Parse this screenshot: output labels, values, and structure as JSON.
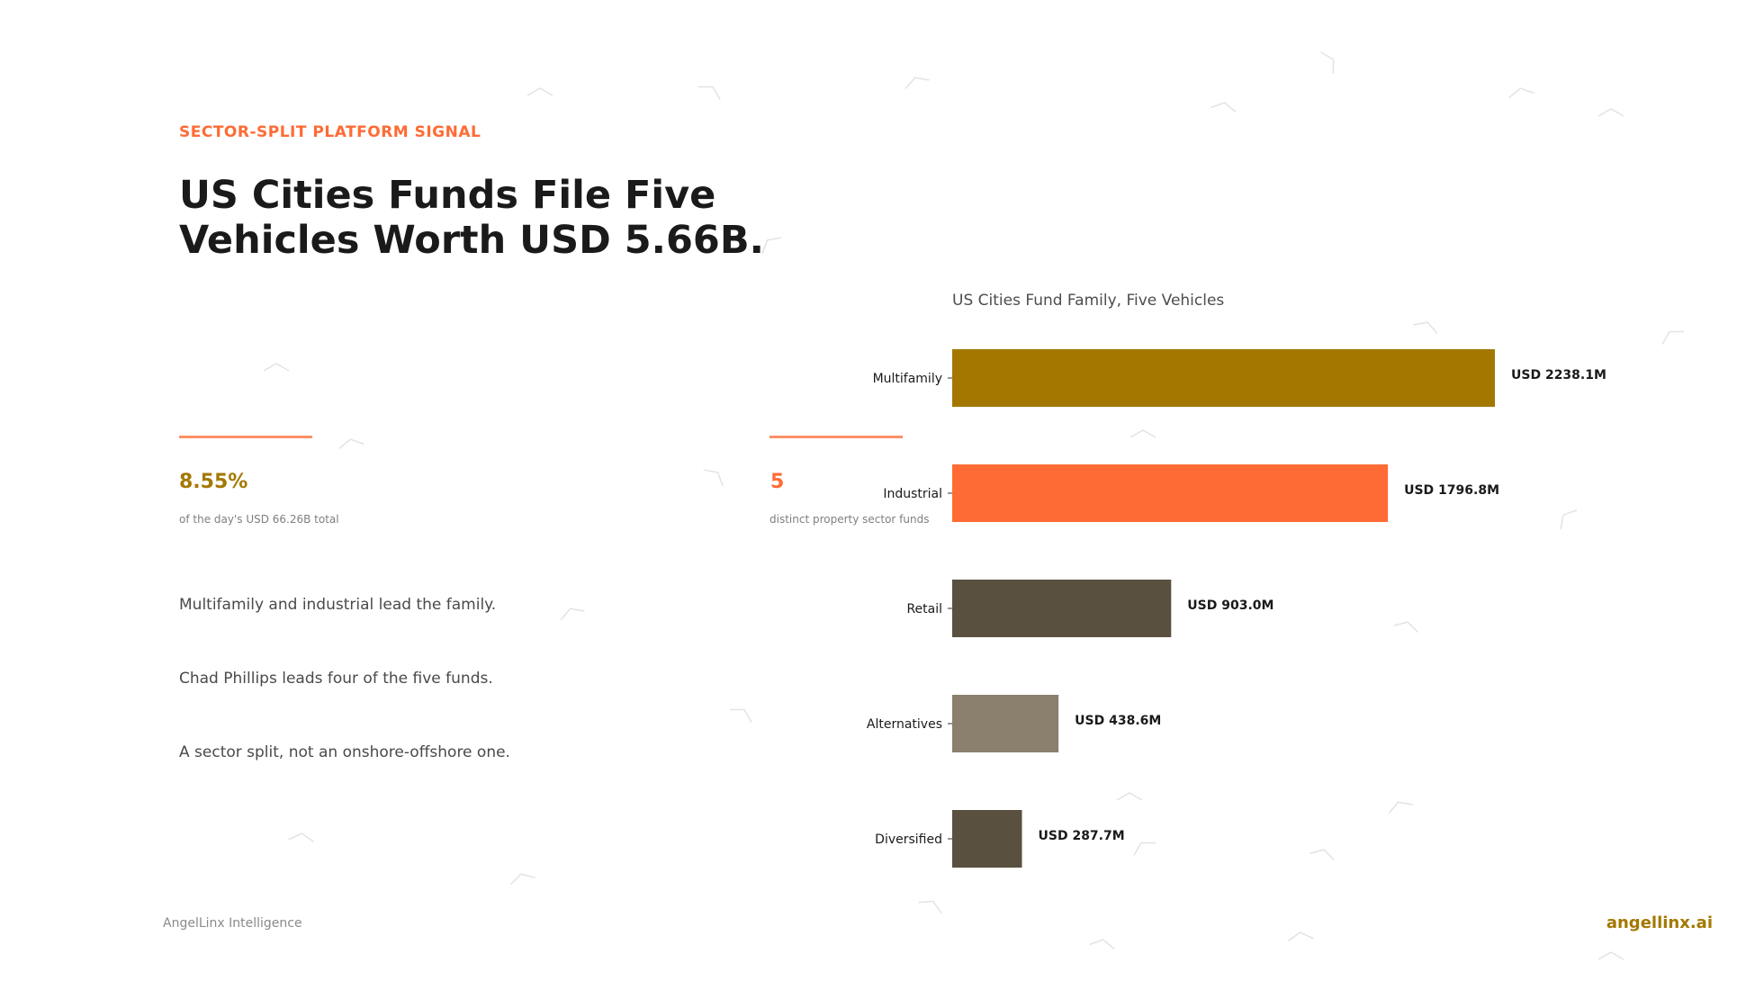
{
  "eyebrow": "SECTOR-SPLIT PLATFORM SIGNAL",
  "headline": {
    "line1": "US Cities Funds File Five",
    "line2": "Vehicles Worth USD 5.66B."
  },
  "stats": [
    {
      "value": "8.55%",
      "label": "of the day's USD 66.26B total"
    },
    {
      "value": "5",
      "label": "distinct property sector funds"
    }
  ],
  "bullets": [
    "Multifamily and industrial lead the family.",
    "Chad Phillips leads four of the five funds.",
    "A sector split, not an onshore-offshore one."
  ],
  "footer": {
    "left": "AngelLinx Intelligence",
    "right": "angellinx.ai"
  },
  "colors": {
    "accent_orange": "#ff6b35",
    "gold": "#a47800",
    "dark_brown": "#5a5040",
    "taupe": "#8b7f6e",
    "text_dark": "#1a1a1a"
  },
  "chart_data": {
    "type": "bar",
    "orientation": "horizontal",
    "title": "US Cities Fund Family, Five Vehicles",
    "categories": [
      "Multifamily",
      "Industrial",
      "Retail",
      "Alternatives",
      "Diversified"
    ],
    "values": [
      2238.1,
      1796.8,
      903.0,
      438.6,
      287.7
    ],
    "value_labels": [
      "USD 2238.1M",
      "USD 1796.8M",
      "USD 903.0M",
      "USD 438.6M",
      "USD 287.7M"
    ],
    "bar_colors": [
      "#a47800",
      "#ff6b35",
      "#5a5040",
      "#8b7f6e",
      "#5a5040"
    ],
    "unit": "USD M",
    "xlim": [
      0,
      2238.1
    ],
    "grid": false,
    "legend": "none"
  }
}
